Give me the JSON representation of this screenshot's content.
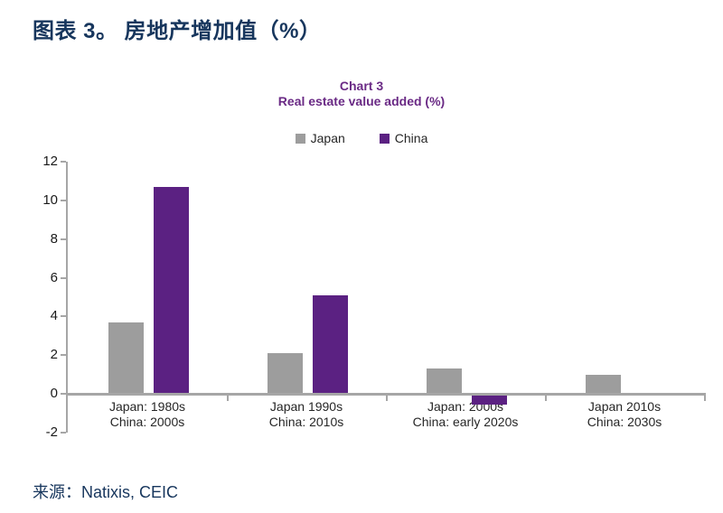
{
  "page": {
    "header_title": "图表 3。 房地产增加值（%）",
    "source_text": "来源：Natixis, CEIC"
  },
  "chart_data": {
    "type": "bar",
    "title": "Chart 3",
    "subtitle": "Real estate value added (%)",
    "legend_position": "top",
    "grid": false,
    "ylim": [
      -2,
      12
    ],
    "ytick_step": 2,
    "axis_color": "#a6a6a6",
    "title_color": "#6a2a85",
    "categories": [
      {
        "line1": "Japan: 1980s",
        "line2": "China: 2000s"
      },
      {
        "line1": "Japan 1990s",
        "line2": "China: 2010s"
      },
      {
        "line1": "Japan: 2000s",
        "line2": "China: early 2020s"
      },
      {
        "line1": "Japan 2010s",
        "line2": "China: 2030s"
      }
    ],
    "series": [
      {
        "name": "Japan",
        "color": "#9d9d9d",
        "values": [
          3.7,
          2.1,
          1.3,
          1.0
        ]
      },
      {
        "name": "China",
        "color": "#5b2182",
        "values": [
          10.7,
          5.1,
          -0.5,
          null
        ]
      }
    ]
  }
}
